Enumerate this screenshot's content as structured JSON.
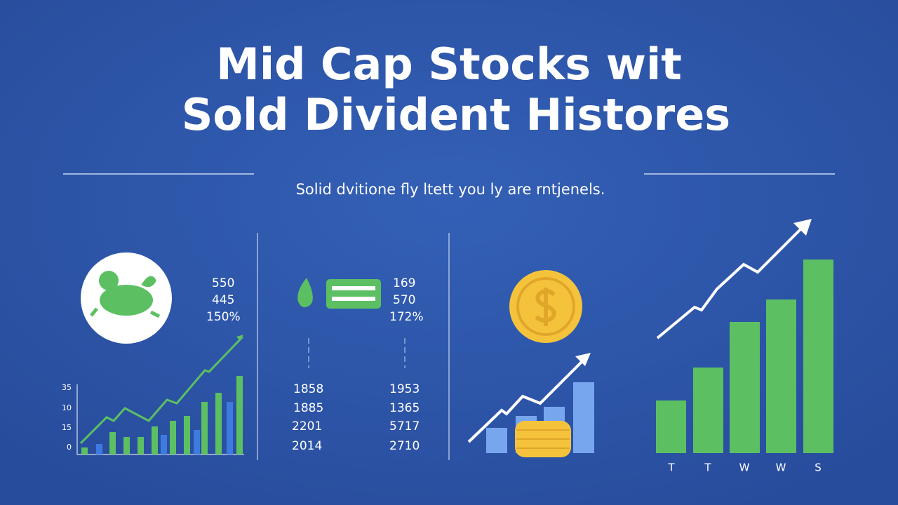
{
  "header": {
    "title_lines": [
      "Mid Cap Stocks wit",
      "Sold Divident Histores"
    ],
    "subtitle": "Solid dvitione fly ltett you ly are rntjenels."
  },
  "panel1": {
    "stats": [
      "550",
      "445",
      "150%"
    ],
    "axis_labels": [
      "35",
      "10",
      "15",
      "0"
    ]
  },
  "panel2": {
    "stats": [
      "169",
      "570",
      "172%"
    ],
    "left_column": [
      "1858",
      "1885",
      "2201",
      "2014"
    ],
    "right_column": [
      "1953",
      "1365",
      "5717",
      "2710"
    ]
  },
  "panel4": {
    "labels": [
      "T",
      "T",
      "W",
      "W",
      "S"
    ]
  }
}
